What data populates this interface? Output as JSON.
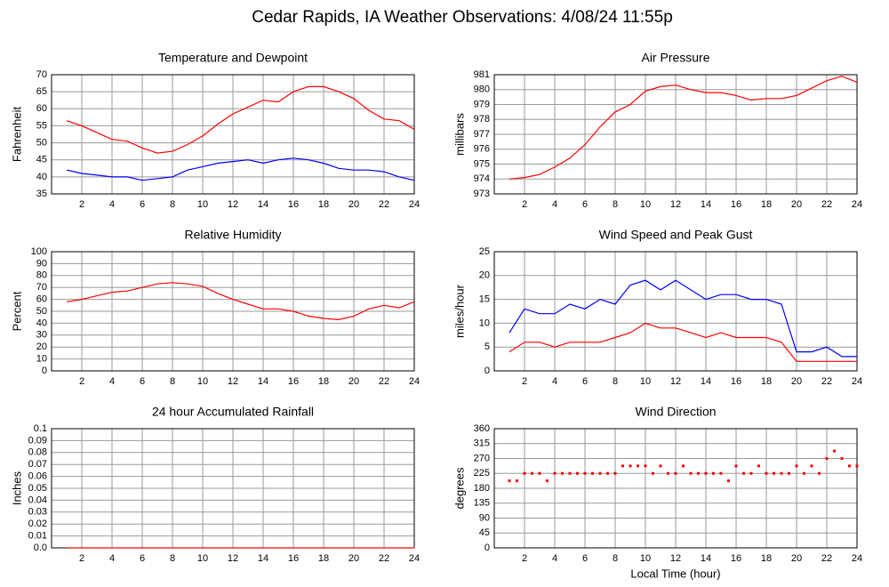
{
  "title": "Cedar Rapids, IA Weather Observations: 4/08/24 11:55p",
  "chart_data": [
    {
      "type": "line",
      "title": "Temperature and Dewpoint",
      "y_label": "Fahrenheit",
      "x": [
        1,
        2,
        3,
        4,
        5,
        6,
        7,
        8,
        9,
        10,
        11,
        12,
        13,
        14,
        15,
        16,
        17,
        18,
        19,
        20,
        21,
        22,
        23,
        24
      ],
      "series": [
        {
          "color": "#ff0000",
          "values": [
            56.5,
            55,
            53,
            51,
            50.5,
            48.5,
            47,
            47.5,
            49.5,
            52,
            55.5,
            58.5,
            60.5,
            62.5,
            62,
            65,
            66.5,
            66.5,
            65,
            63,
            59.5,
            57,
            56.5,
            54
          ]
        },
        {
          "color": "#0000ff",
          "values": [
            42,
            41,
            40.5,
            40,
            40,
            39,
            39.5,
            40,
            42,
            43,
            44,
            44.5,
            45,
            44,
            45,
            45.5,
            45,
            44,
            42.5,
            42,
            42,
            41.5,
            40,
            39
          ]
        }
      ],
      "xlim": [
        0,
        24
      ],
      "xticks": [
        2,
        4,
        6,
        8,
        10,
        12,
        14,
        16,
        18,
        20,
        22,
        24
      ],
      "ylim": [
        35,
        70
      ],
      "yticks": [
        35,
        40,
        45,
        50,
        55,
        60,
        65,
        70
      ],
      "grid": true
    },
    {
      "type": "line",
      "title": "Air Pressure",
      "y_label": "millibars",
      "x": [
        1,
        2,
        3,
        4,
        5,
        6,
        7,
        8,
        9,
        10,
        11,
        12,
        13,
        14,
        15,
        16,
        17,
        18,
        19,
        20,
        21,
        22,
        23,
        24
      ],
      "series": [
        {
          "color": "#ff0000",
          "values": [
            974,
            974.1,
            974.3,
            974.8,
            975.4,
            976.3,
            977.5,
            978.5,
            979,
            979.9,
            980.2,
            980.3,
            980,
            979.8,
            979.8,
            979.6,
            979.3,
            979.4,
            979.4,
            979.6,
            980.1,
            980.6,
            980.9,
            980.5
          ]
        }
      ],
      "xlim": [
        0,
        24
      ],
      "xticks": [
        2,
        4,
        6,
        8,
        10,
        12,
        14,
        16,
        18,
        20,
        22,
        24
      ],
      "ylim": [
        973,
        981
      ],
      "yticks": [
        973,
        974,
        975,
        976,
        977,
        978,
        979,
        980,
        981
      ],
      "grid": true
    },
    {
      "type": "line",
      "title": "Relative Humidity",
      "y_label": "Percent",
      "x": [
        1,
        2,
        3,
        4,
        5,
        6,
        7,
        8,
        9,
        10,
        11,
        12,
        13,
        14,
        15,
        16,
        17,
        18,
        19,
        20,
        21,
        22,
        23,
        24
      ],
      "series": [
        {
          "color": "#ff0000",
          "values": [
            58,
            60,
            63,
            66,
            67,
            70,
            73,
            74,
            73,
            71,
            65,
            60,
            56,
            52,
            52,
            50,
            46,
            44,
            43,
            46,
            52,
            55,
            53,
            58
          ]
        }
      ],
      "xlim": [
        0,
        24
      ],
      "xticks": [
        2,
        4,
        6,
        8,
        10,
        12,
        14,
        16,
        18,
        20,
        22,
        24
      ],
      "ylim": [
        0,
        100
      ],
      "yticks": [
        0,
        10,
        20,
        30,
        40,
        50,
        60,
        70,
        80,
        90,
        100
      ],
      "grid": true
    },
    {
      "type": "line",
      "title": "Wind Speed and Peak Gust",
      "y_label": "miles/hour",
      "x": [
        1,
        2,
        3,
        4,
        5,
        6,
        7,
        8,
        9,
        10,
        11,
        12,
        13,
        14,
        15,
        16,
        17,
        18,
        19,
        20,
        21,
        22,
        23,
        24
      ],
      "series": [
        {
          "color": "#0000ff",
          "values": [
            8,
            13,
            12,
            12,
            14,
            13,
            15,
            14,
            18,
            19,
            17,
            19,
            17,
            15,
            16,
            16,
            15,
            15,
            14,
            4,
            4,
            5,
            3,
            3
          ]
        },
        {
          "color": "#ff0000",
          "values": [
            4,
            6,
            6,
            5,
            6,
            6,
            6,
            7,
            8,
            10,
            9,
            9,
            8,
            7,
            8,
            7,
            7,
            7,
            6,
            2,
            2,
            2,
            2,
            2
          ]
        }
      ],
      "xlim": [
        0,
        24
      ],
      "xticks": [
        2,
        4,
        6,
        8,
        10,
        12,
        14,
        16,
        18,
        20,
        22,
        24
      ],
      "ylim": [
        0,
        25
      ],
      "yticks": [
        0,
        5,
        10,
        15,
        20,
        25
      ],
      "grid": true
    },
    {
      "type": "line",
      "title": "24 hour Accumulated Rainfall",
      "y_label": "Inches",
      "x": [
        1,
        2,
        3,
        4,
        5,
        6,
        7,
        8,
        9,
        10,
        11,
        12,
        13,
        14,
        15,
        16,
        17,
        18,
        19,
        20,
        21,
        22,
        23,
        24
      ],
      "series": [
        {
          "color": "#ff0000",
          "values": [
            0,
            0,
            0,
            0,
            0,
            0,
            0,
            0,
            0,
            0,
            0,
            0,
            0,
            0,
            0,
            0,
            0,
            0,
            0,
            0,
            0,
            0,
            0,
            0
          ]
        }
      ],
      "xlim": [
        0,
        24
      ],
      "xticks": [
        2,
        4,
        6,
        8,
        10,
        12,
        14,
        16,
        18,
        20,
        22,
        24
      ],
      "ylim": [
        0,
        0.1
      ],
      "yticks": [
        {
          "value": 0,
          "label": "0.0"
        },
        0.01,
        0.02,
        0.03,
        0.04,
        0.05,
        0.06,
        0.07,
        0.08,
        0.09,
        0.1
      ],
      "grid": true
    },
    {
      "type": "scatter",
      "title": "Wind Direction",
      "y_label": "degrees",
      "x_label": "Local Time (hour)",
      "x": [
        1,
        1.5,
        2,
        2.5,
        3,
        3.5,
        4,
        4.5,
        5,
        5.5,
        6,
        6.5,
        7,
        7.5,
        8,
        8.5,
        9,
        9.5,
        10,
        10.5,
        11,
        11.5,
        12,
        12.5,
        13,
        13.5,
        14,
        14.5,
        15,
        15.5,
        16,
        16.5,
        17,
        17.5,
        18,
        18.5,
        19,
        19.5,
        20,
        20.5,
        21,
        21.5,
        22,
        22.5,
        23,
        23.5,
        24
      ],
      "series": [
        {
          "color": "#ff0000",
          "values": [
            202.5,
            202.5,
            225,
            225,
            225,
            202.5,
            225,
            225,
            225,
            225,
            225,
            225,
            225,
            225,
            225,
            247.5,
            247.5,
            247.5,
            247.5,
            225,
            247.5,
            225,
            225,
            247.5,
            225,
            225,
            225,
            225,
            225,
            202.5,
            247.5,
            225,
            225,
            247.5,
            225,
            225,
            225,
            225,
            247.5,
            225,
            247.5,
            225,
            270,
            292.5,
            270,
            247.5,
            247.5
          ]
        }
      ],
      "xlim": [
        0,
        24
      ],
      "xticks": [
        2,
        4,
        6,
        8,
        10,
        12,
        14,
        16,
        18,
        20,
        22,
        24
      ],
      "ylim": [
        0,
        360
      ],
      "yticks": [
        0,
        45,
        90,
        135,
        180,
        225,
        270,
        315,
        360
      ],
      "grid": true
    }
  ]
}
